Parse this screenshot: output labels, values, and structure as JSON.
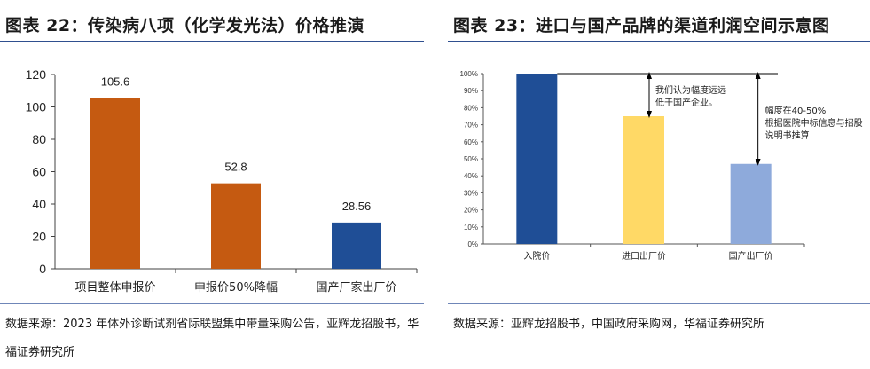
{
  "left": {
    "title": "图表 22：传染病八项（化学发光法）价格推演",
    "source": "数据来源：2023 年体外诊断试剂省际联盟集中带量采购公告，亚辉龙招股书，华福证券研究所"
  },
  "right": {
    "title": "图表 23：进口与国产品牌的渠道利润空间示意图",
    "source": "数据来源：亚辉龙招股书，中国政府采购网，华福证券研究所",
    "annotation_1": [
      "我们认为幅度远远",
      "低于国产企业。"
    ],
    "annotation_2": [
      "幅度在40-50%",
      "根据医院中标信息与招股",
      "说明书推算"
    ]
  },
  "chart_data": [
    {
      "type": "bar",
      "title": "图表 22：传染病八项（化学发光法）价格推演",
      "categories": [
        "项目整体申报价",
        "申报价50%降幅",
        "国产厂家出厂价"
      ],
      "values": [
        105.6,
        52.8,
        28.56
      ],
      "data_labels": [
        "105.6",
        "52.8",
        "28.56"
      ],
      "colors": [
        "#c55a11",
        "#c55a11",
        "#1f4e96"
      ],
      "ylim": [
        0,
        120
      ],
      "yticks": [
        "0",
        "20",
        "40",
        "60",
        "80",
        "100",
        "120"
      ],
      "xlabel": "",
      "ylabel": "",
      "grid": false
    },
    {
      "type": "bar",
      "title": "图表 23：进口与国产品牌的渠道利润空间示意图",
      "categories": [
        "入院价",
        "进口出厂价",
        "国产出厂价"
      ],
      "values": [
        100,
        75,
        47
      ],
      "colors": [
        "#1f4e96",
        "#ffd966",
        "#8eaadb"
      ],
      "ylim": [
        0,
        100
      ],
      "yticks": [
        "0%",
        "10%",
        "20%",
        "30%",
        "40%",
        "50%",
        "60%",
        "70%",
        "80%",
        "90%",
        "100%"
      ],
      "xlabel": "",
      "ylabel": "",
      "grid": false
    }
  ]
}
